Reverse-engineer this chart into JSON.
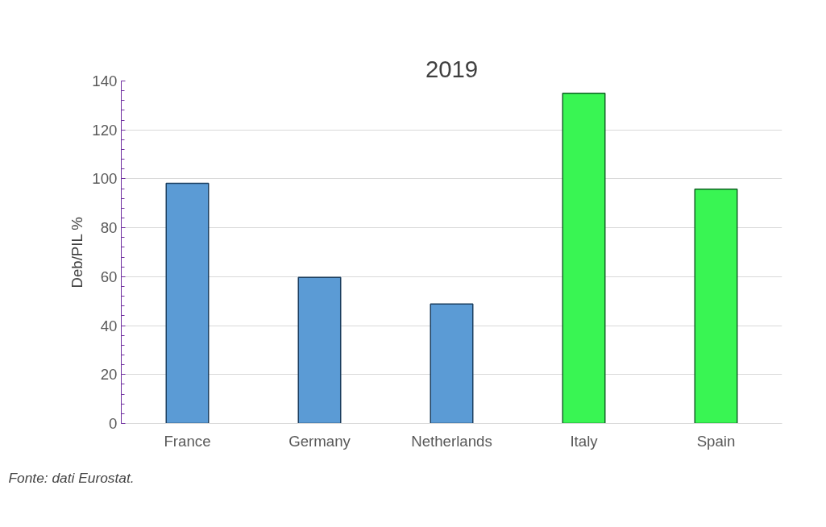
{
  "chart_data": {
    "type": "bar",
    "title": "2019",
    "categories": [
      "France",
      "Germany",
      "Netherlands",
      "Italy",
      "Spain"
    ],
    "values": [
      98.2,
      59.7,
      48.8,
      135,
      95.8
    ],
    "colors": [
      "#5b9bd5",
      "#5b9bd5",
      "#5b9bd5",
      "#39f553",
      "#39f553"
    ],
    "ylabel": "Deb/PIL %",
    "ylim": [
      0,
      140
    ],
    "yticks": [
      0,
      20,
      40,
      60,
      80,
      100,
      120,
      140
    ],
    "grid": "y",
    "annotations": [
      "Fonte: dati Eurostat."
    ]
  }
}
